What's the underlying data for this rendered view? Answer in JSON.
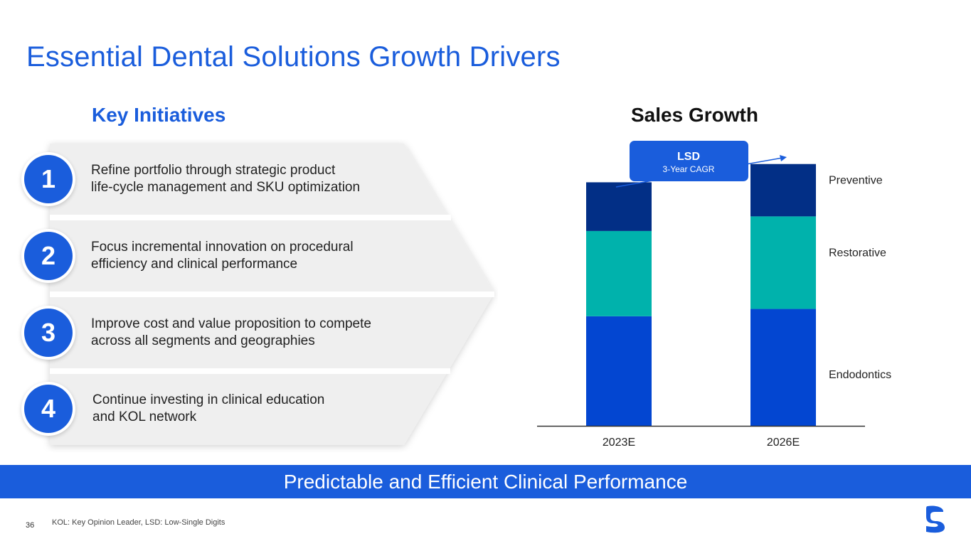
{
  "title": "Essential Dental Solutions Growth Drivers",
  "key_initiatives": {
    "heading": "Key Initiatives",
    "items": [
      {
        "number": "1",
        "text_line1": "Refine portfolio through strategic product",
        "text_line2": "life-cycle management and SKU optimization"
      },
      {
        "number": "2",
        "text_line1": "Focus incremental innovation on procedural",
        "text_line2": "efficiency and clinical performance"
      },
      {
        "number": "3",
        "text_line1": "Improve cost and value proposition to compete",
        "text_line2": "across all segments and geographies"
      },
      {
        "number": "4",
        "text_line1": "Continue investing in clinical education",
        "text_line2": "and KOL network"
      }
    ]
  },
  "chart_data": {
    "type": "bar",
    "stacked": true,
    "title": "Sales Growth",
    "categories": [
      "2023E",
      "2026E"
    ],
    "series": [
      {
        "name": "Endodontics",
        "color": "#0346d1",
        "values": [
          45,
          48
        ]
      },
      {
        "name": "Restorative",
        "color": "#00b2ac",
        "values": [
          35,
          38
        ]
      },
      {
        "name": "Preventive",
        "color": "#022f86",
        "values": [
          20,
          21.5
        ]
      }
    ],
    "ylim": [
      0,
      108
    ],
    "annotation": {
      "label": "LSD",
      "sublabel": "3-Year CAGR"
    },
    "xlabel": "",
    "ylabel": ""
  },
  "banner": "Predictable and Efficient Clinical Performance",
  "footer": {
    "page_number": "36",
    "footnote": "KOL: Key Opinion Leader, LSD: Low-Single Digits"
  },
  "colors": {
    "accent": "#1a5ddc",
    "chevron": "#efefef"
  }
}
